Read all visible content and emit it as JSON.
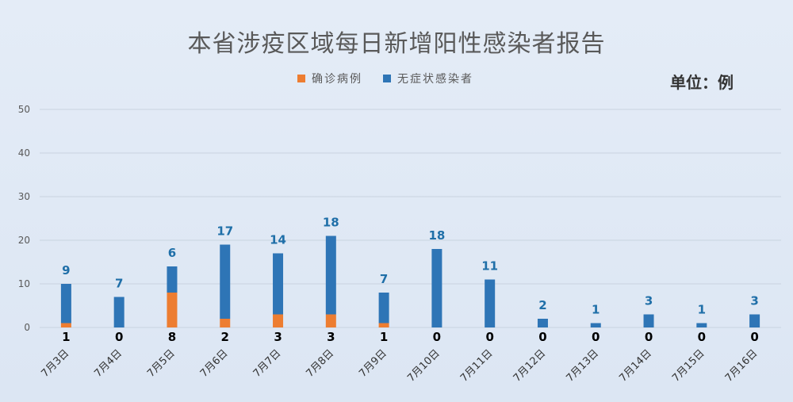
{
  "title": "本省涉疫区域每日新增阳性感染者报告",
  "unit": "单位：例",
  "colors": {
    "confirmed": "#ED7D31",
    "asymptomatic": "#2E75B6",
    "grid": "#c9d3e0",
    "axis_text": "#595959",
    "top_label": "#1f6fa8",
    "bottom_label": "#000000"
  },
  "chart_data": {
    "type": "bar",
    "stacked": true,
    "categories": [
      "7月3日",
      "7月4日",
      "7月5日",
      "7月6日",
      "7月7日",
      "7月8日",
      "7月9日",
      "7月10日",
      "7月11日",
      "7月12日",
      "7月13日",
      "7月14日",
      "7月15日",
      "7月16日"
    ],
    "series": [
      {
        "name": "确诊病例",
        "values": [
          1,
          0,
          8,
          2,
          3,
          3,
          1,
          0,
          0,
          0,
          0,
          0,
          0,
          0
        ]
      },
      {
        "name": "无症状感染者",
        "values": [
          9,
          7,
          6,
          17,
          14,
          18,
          7,
          18,
          11,
          2,
          1,
          3,
          1,
          3
        ]
      }
    ],
    "ylim": [
      0,
      50
    ],
    "yticks": [
      0,
      10,
      20,
      30,
      40,
      50
    ],
    "grid": true,
    "legend_position": "top-center"
  }
}
